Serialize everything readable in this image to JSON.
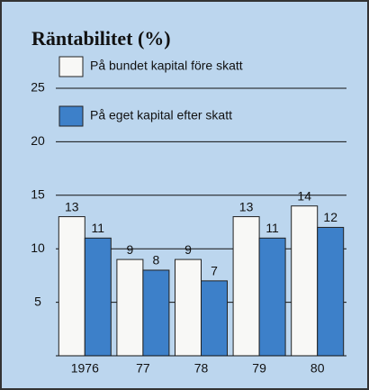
{
  "chart_data": {
    "type": "bar",
    "title": "Räntabilitet (%)",
    "categories": [
      "1976",
      "77",
      "78",
      "79",
      "80"
    ],
    "series": [
      {
        "name": "På bundet kapital före skatt",
        "color": "#f8f8f6",
        "values": [
          13,
          9,
          9,
          13,
          14
        ]
      },
      {
        "name": "På eget kapital efter skatt",
        "color": "#3d80c9",
        "values": [
          11,
          8,
          7,
          11,
          12
        ]
      }
    ],
    "ylim": [
      0,
      25
    ],
    "yticks": [
      5,
      10,
      15,
      20,
      25
    ],
    "grid": true
  }
}
